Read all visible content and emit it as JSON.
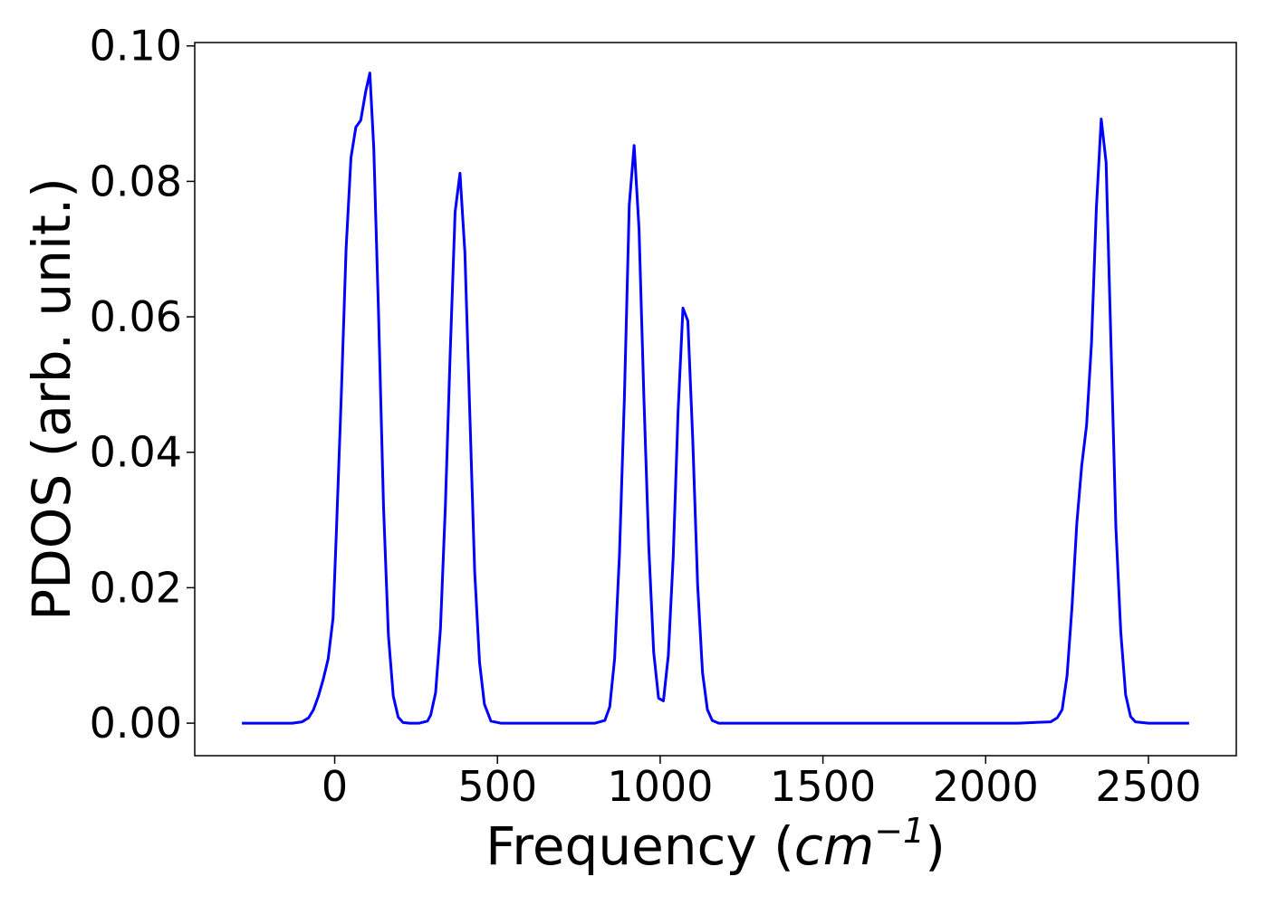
{
  "chart_data": {
    "type": "line",
    "title": "",
    "xlabel_prefix": "Frequency (",
    "xlabel_unit": "cm",
    "xlabel_exp": "−1",
    "xlabel_suffix": ")",
    "ylabel": "PDOS (arb. unit.)",
    "xlim": [
      -430,
      2770
    ],
    "ylim": [
      -0.0048,
      0.1005
    ],
    "xticks": [
      0,
      500,
      1000,
      1500,
      2000,
      2500
    ],
    "xtick_labels": [
      "0",
      "500",
      "1000",
      "1500",
      "2000",
      "2500"
    ],
    "yticks": [
      0.0,
      0.02,
      0.04,
      0.06,
      0.08,
      0.1
    ],
    "ytick_labels": [
      "0.00",
      "0.02",
      "0.04",
      "0.06",
      "0.08",
      "0.10"
    ],
    "grid": false,
    "series": [
      {
        "color": "#0000ff",
        "x": [
          -285,
          -200,
          -130,
          -100,
          -80,
          -65,
          -50,
          -35,
          -20,
          -5,
          5,
          20,
          35,
          50,
          65,
          80,
          95,
          108,
          120,
          135,
          150,
          165,
          180,
          195,
          210,
          230,
          260,
          285,
          295,
          310,
          325,
          340,
          355,
          370,
          385,
          400,
          415,
          430,
          445,
          460,
          480,
          510,
          600,
          700,
          800,
          830,
          845,
          860,
          875,
          890,
          905,
          920,
          935,
          950,
          965,
          980,
          995,
          1010,
          1025,
          1040,
          1055,
          1070,
          1085,
          1100,
          1115,
          1130,
          1145,
          1160,
          1180,
          1250,
          1500,
          1800,
          2100,
          2200,
          2220,
          2235,
          2250,
          2265,
          2280,
          2295,
          2310,
          2325,
          2340,
          2355,
          2370,
          2385,
          2400,
          2415,
          2430,
          2445,
          2460,
          2500,
          2625
        ],
        "y": [
          0.0,
          0.0,
          0.0,
          0.0002,
          0.0008,
          0.002,
          0.004,
          0.0065,
          0.0095,
          0.0155,
          0.028,
          0.048,
          0.07,
          0.0835,
          0.088,
          0.089,
          0.0932,
          0.096,
          0.085,
          0.06,
          0.032,
          0.013,
          0.004,
          0.0009,
          0.0001,
          0.0,
          0.0,
          0.0003,
          0.0012,
          0.0045,
          0.014,
          0.032,
          0.0548,
          0.0755,
          0.0812,
          0.0695,
          0.046,
          0.0225,
          0.009,
          0.0028,
          0.0003,
          0.0,
          0.0,
          0.0,
          0.0,
          0.0004,
          0.0024,
          0.0095,
          0.025,
          0.048,
          0.0765,
          0.0853,
          0.073,
          0.048,
          0.026,
          0.0105,
          0.0037,
          0.0033,
          0.01,
          0.0245,
          0.046,
          0.0613,
          0.0594,
          0.042,
          0.0205,
          0.0075,
          0.002,
          0.0004,
          0.0,
          0.0,
          0.0,
          0.0,
          0.0,
          0.0002,
          0.0008,
          0.002,
          0.007,
          0.017,
          0.0295,
          0.038,
          0.044,
          0.056,
          0.076,
          0.0892,
          0.0828,
          0.056,
          0.029,
          0.0135,
          0.0042,
          0.001,
          0.0002,
          0.0,
          0.0
        ]
      }
    ]
  }
}
